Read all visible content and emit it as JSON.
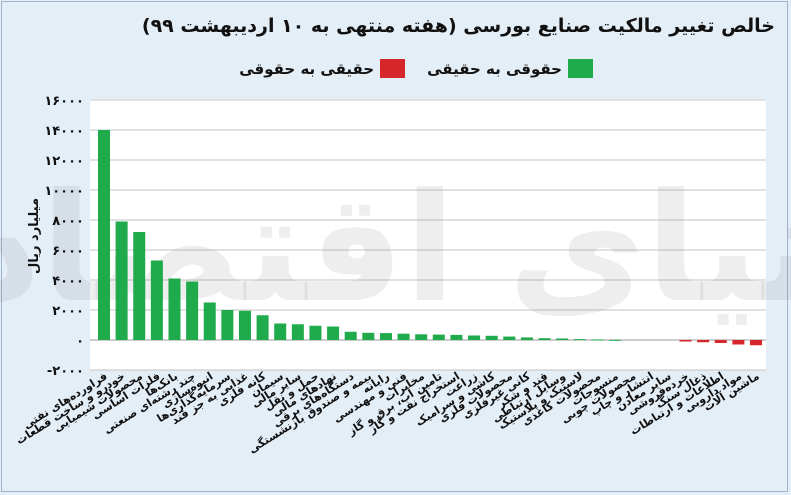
{
  "chart_data": {
    "type": "bar",
    "title": "خالص تغییر مالکیت صنایع بورسی (هفته منتهی به ۱۰ اردیبهشت ۹۹)",
    "ylabel": "میلیارد ریال",
    "ylim": [
      -2000,
      16000
    ],
    "yticks": [
      16000,
      14000,
      12000,
      10000,
      8000,
      6000,
      4000,
      2000,
      0,
      -2000
    ],
    "ytick_labels": [
      "۱۶۰۰۰",
      "۱۴۰۰۰",
      "۱۲۰۰۰",
      "۱۰۰۰۰",
      "۸۰۰۰",
      "۶۰۰۰",
      "۴۰۰۰",
      "۲۰۰۰",
      "۰",
      "-۲۰۰۰"
    ],
    "grid": true,
    "legend": [
      {
        "label": "حقوقی به حقیقی",
        "color": "#1faa4b"
      },
      {
        "label": "حقیقی به حقوقی",
        "color": "#d7262a"
      }
    ],
    "categories": [
      "فراورده‌های نفتی",
      "خودرو و ساخت قطعات",
      "محصولات شیمیایی",
      "فلزات اساسی",
      "بانک‌ها",
      "چند رشته‌ای صنعتی",
      "انبوه‌سازی",
      "سرمایه‌گذاری‌ها",
      "غذایی به جز قند",
      "کانه فلزی",
      "سیمان",
      "سایر مالی",
      "حمل و نقل",
      "نهادهای مالی",
      "دستگاه‌های برقی",
      "بیمه و صندوق بازنشستگی",
      "رایانه",
      "فنی و مهندسی",
      "مخابرات",
      "تامین آب، برق و گاز",
      "استخراج نفت و گاز",
      "زراعت",
      "کاشی و سرامیک",
      "محصولات فلزی",
      "کانی غیرفلزی",
      "قند و شکر",
      "وسایل ارتباطی",
      "لاستیک و پلاستیک",
      "محصولات کاغذی",
      "منسوجات",
      "محصولات چوبی",
      "انتشار و چاپ",
      "سایر معادن",
      "خرده‌فروشی",
      "ذغال سنگ",
      "اطلاعات و ارتباطات",
      "مواد دارویی",
      "ماشین آلات"
    ],
    "values": [
      14000,
      7900,
      7200,
      5300,
      4100,
      3900,
      2500,
      2000,
      1950,
      1650,
      1100,
      1050,
      950,
      900,
      550,
      480,
      460,
      420,
      380,
      360,
      340,
      300,
      280,
      230,
      170,
      120,
      100,
      60,
      40,
      10,
      0,
      0,
      0,
      -100,
      -150,
      -200,
      -300,
      -350
    ],
    "colors": {
      "positive": "#1faa4b",
      "negative": "#d7262a"
    }
  },
  "watermark": "دنیای اقتصاد"
}
